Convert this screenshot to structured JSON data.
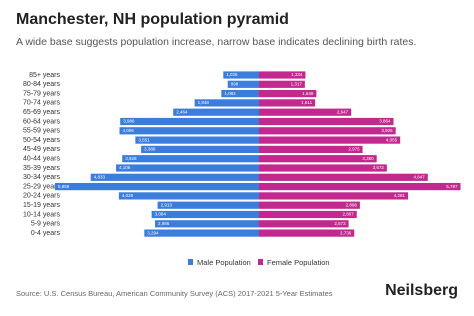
{
  "chart_data": {
    "type": "pyramid",
    "title": "Manchester, NH population pyramid",
    "subtitle": "A wide base suggests population increase, narrow base indicates declining birth rates.",
    "source": "Source: U.S. Census Bureau, American Community Survey (ACS) 2017-2021 5-Year Estimates",
    "brand": "Neilsberg",
    "categories": [
      "85+ years",
      "80-84 years",
      "75-79 years",
      "70-74 years",
      "65-69 years",
      "60-64 years",
      "55-59 years",
      "50-54 years",
      "45-49 years",
      "40-44 years",
      "35-39 years",
      "30-34 years",
      "25-29 years",
      "20-24 years",
      "15-19 years",
      "10-14 years",
      "5-9 years",
      "0-4 years"
    ],
    "series": [
      {
        "name": "Male Population",
        "color": "#3b7ddd",
        "values": [
          1026,
          898,
          1082,
          1848,
          2464,
          3986,
          4006,
          3551,
          3386,
          3928,
          4106,
          4833,
          5859,
          4025,
          2913,
          3084,
          2986,
          3294
        ],
        "value_labels": [
          "1,026",
          "898",
          "1,082",
          "1,848",
          "2,464",
          "3,986",
          "4,006",
          "3,551",
          "3,386",
          "3,928",
          "4,106",
          "4,833",
          "5,859",
          "4,025",
          "2,913",
          "3,084",
          "2,986",
          "3,294"
        ]
      },
      {
        "name": "Female Population",
        "color": "#c2288e",
        "values": [
          1334,
          1317,
          1649,
          1611,
          2647,
          3864,
          3925,
          4055,
          2975,
          3380,
          3672,
          4847,
          5787,
          4281,
          2898,
          2807,
          2573,
          2736
        ],
        "value_labels": [
          "1,334",
          "1,317",
          "1,649",
          "1,611",
          "2,647",
          "3,864",
          "3,925",
          "4,055",
          "2,975",
          "3,380",
          "3,672",
          "4,847",
          "5,787",
          "4,281",
          "2,898",
          "2,807",
          "2,573",
          "2,736"
        ]
      }
    ]
  }
}
